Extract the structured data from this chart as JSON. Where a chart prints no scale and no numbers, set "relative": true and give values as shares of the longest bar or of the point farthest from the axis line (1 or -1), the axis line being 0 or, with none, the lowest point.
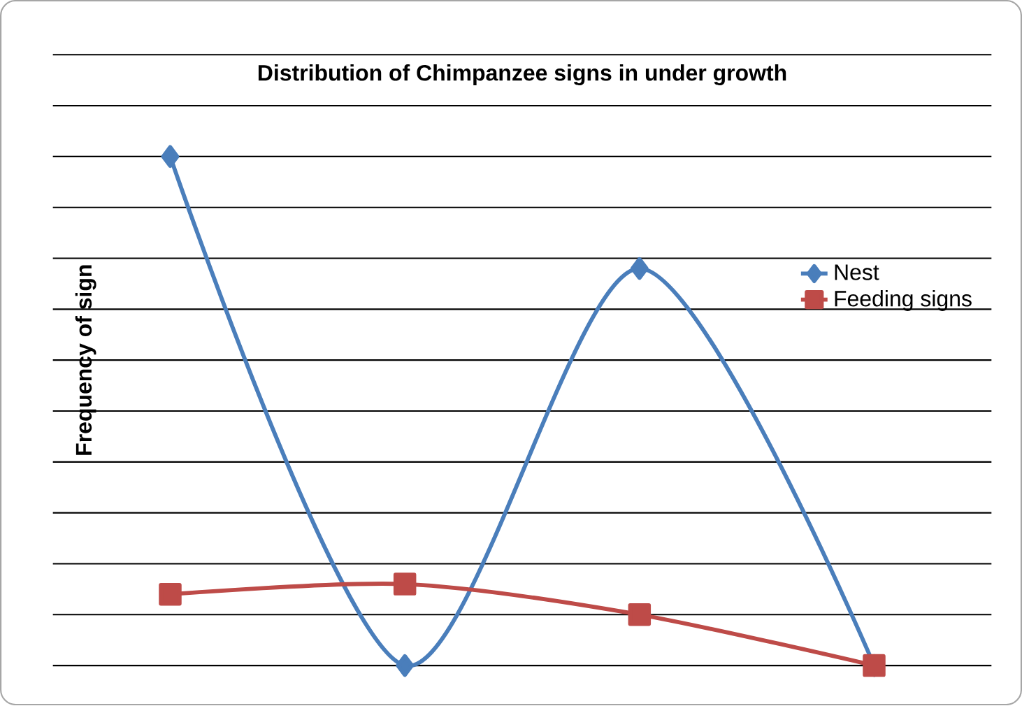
{
  "chart_data": {
    "type": "line",
    "title": "Distribution of Chimpanzee signs in under growth",
    "ylabel": "Frequency of sign",
    "relative": true,
    "grid": "y",
    "legend": "right",
    "categories": [
      null,
      null,
      null,
      null
    ],
    "series": [
      {
        "name": "Nest",
        "color": "#4a7ebb",
        "marker": "diamond",
        "values": [
          1,
          0,
          0.78,
          0
        ]
      },
      {
        "name": "Feeding signs",
        "color": "#be4b48",
        "marker": "square",
        "values": [
          0.14,
          0.16,
          0.1,
          0
        ]
      }
    ]
  }
}
